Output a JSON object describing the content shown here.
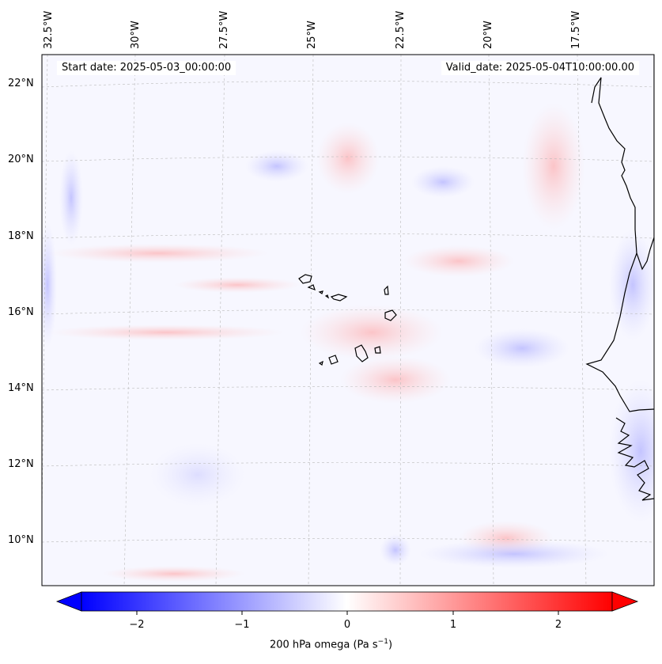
{
  "map": {
    "lon_labels": [
      "32.5°W",
      "30°W",
      "27.5°W",
      "25°W",
      "22.5°W",
      "20°W",
      "17.5°W"
    ],
    "lat_labels": [
      "22°N",
      "20°N",
      "18°N",
      "16°N",
      "14°N",
      "12°N",
      "10°N"
    ],
    "start_date": "Start date: 2025-05-03_00:00:00",
    "valid_date": "Valid_date: 2025-05-04T10:00:00.00",
    "region": "Cape Verde / West Africa coast"
  },
  "colorbar": {
    "ticks": [
      "−2",
      "−1",
      "0",
      "1",
      "2"
    ],
    "label_text": "200 hPa omega (Pa s",
    "label_exp": "−1",
    "label_close": ")",
    "min": -2.7,
    "max": 2.7,
    "colors": {
      "neg": "#0000ff",
      "zero": "#ffffff",
      "pos": "#ff0000"
    }
  }
}
